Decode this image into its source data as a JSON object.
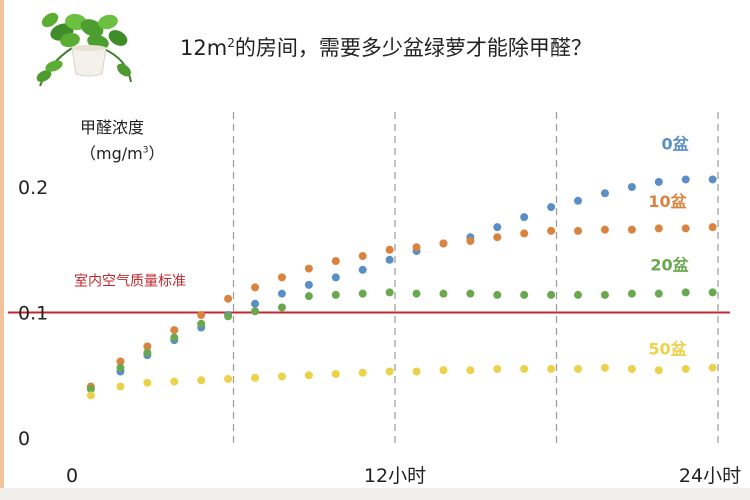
{
  "header": {
    "title_prefix": "12m",
    "title_sup": "2",
    "title_suffix": "的房间，需要多少盆绿萝才能除甲醛？"
  },
  "chart_data": {
    "type": "scatter",
    "y_axis_title": "甲醛浓度",
    "y_axis_unit_prefix": "（mg/m",
    "y_axis_unit_sup": "3",
    "y_axis_unit_suffix": "）",
    "x_tick_labels": [
      "0",
      "12小时",
      "24小时"
    ],
    "x_ticks": [
      0,
      12,
      24
    ],
    "y_tick_labels": [
      "0",
      "0.1",
      "0.2"
    ],
    "y_ticks": [
      0,
      0.1,
      0.2
    ],
    "xlim": [
      0,
      24
    ],
    "ylim": [
      0,
      0.2
    ],
    "gridlines_x": [
      6,
      12,
      18,
      24
    ],
    "grid": "vertical dashed",
    "reference_line": {
      "label": "室内空气质量标准",
      "value": 0.1,
      "color": "#c0282d"
    },
    "series": [
      {
        "name": "0盆",
        "color": "#5b8ec6",
        "x": [
          0.7,
          1.8,
          2.8,
          3.8,
          4.8,
          5.8,
          6.8,
          7.8,
          8.8,
          9.8,
          10.8,
          11.8,
          12.8,
          13.8,
          14.8,
          15.8,
          16.8,
          17.8,
          18.8,
          19.8,
          20.8,
          21.8,
          22.8,
          23.8
        ],
        "y": [
          0.04,
          0.053,
          0.066,
          0.078,
          0.088,
          0.098,
          0.107,
          0.115,
          0.122,
          0.128,
          0.134,
          0.142,
          0.149,
          0.155,
          0.16,
          0.168,
          0.176,
          0.184,
          0.189,
          0.195,
          0.2,
          0.204,
          0.206,
          0.206
        ]
      },
      {
        "name": "10盆",
        "color": "#d9833f",
        "x": [
          0.7,
          1.8,
          2.8,
          3.8,
          4.8,
          5.8,
          6.8,
          7.8,
          8.8,
          9.8,
          10.8,
          11.8,
          12.8,
          13.8,
          14.8,
          15.8,
          16.8,
          17.8,
          18.8,
          19.8,
          20.8,
          21.8,
          22.8,
          23.8
        ],
        "y": [
          0.041,
          0.061,
          0.073,
          0.086,
          0.098,
          0.111,
          0.12,
          0.128,
          0.135,
          0.141,
          0.145,
          0.15,
          0.152,
          0.155,
          0.157,
          0.16,
          0.163,
          0.165,
          0.165,
          0.166,
          0.166,
          0.167,
          0.167,
          0.168
        ]
      },
      {
        "name": "20盆",
        "color": "#6aa84f",
        "x": [
          0.7,
          1.8,
          2.8,
          3.8,
          4.8,
          5.8,
          6.8,
          7.8,
          8.8,
          9.8,
          10.8,
          11.8,
          12.8,
          13.8,
          14.8,
          15.8,
          16.8,
          17.8,
          18.8,
          19.8,
          20.8,
          21.8,
          22.8,
          23.8
        ],
        "y": [
          0.039,
          0.056,
          0.068,
          0.08,
          0.091,
          0.097,
          0.101,
          0.104,
          0.113,
          0.114,
          0.115,
          0.116,
          0.115,
          0.115,
          0.115,
          0.114,
          0.114,
          0.114,
          0.114,
          0.114,
          0.115,
          0.115,
          0.116,
          0.116
        ]
      },
      {
        "name": "50盆",
        "color": "#ead24a",
        "x": [
          0.7,
          1.8,
          2.8,
          3.8,
          4.8,
          5.8,
          6.8,
          7.8,
          8.8,
          9.8,
          10.8,
          11.8,
          12.8,
          13.8,
          14.8,
          15.8,
          16.8,
          17.8,
          18.8,
          19.8,
          20.8,
          21.8,
          22.8,
          23.8
        ],
        "y": [
          0.034,
          0.041,
          0.044,
          0.045,
          0.046,
          0.047,
          0.048,
          0.049,
          0.05,
          0.051,
          0.052,
          0.053,
          0.053,
          0.054,
          0.054,
          0.055,
          0.055,
          0.055,
          0.055,
          0.056,
          0.055,
          0.054,
          0.055,
          0.056
        ]
      }
    ]
  }
}
